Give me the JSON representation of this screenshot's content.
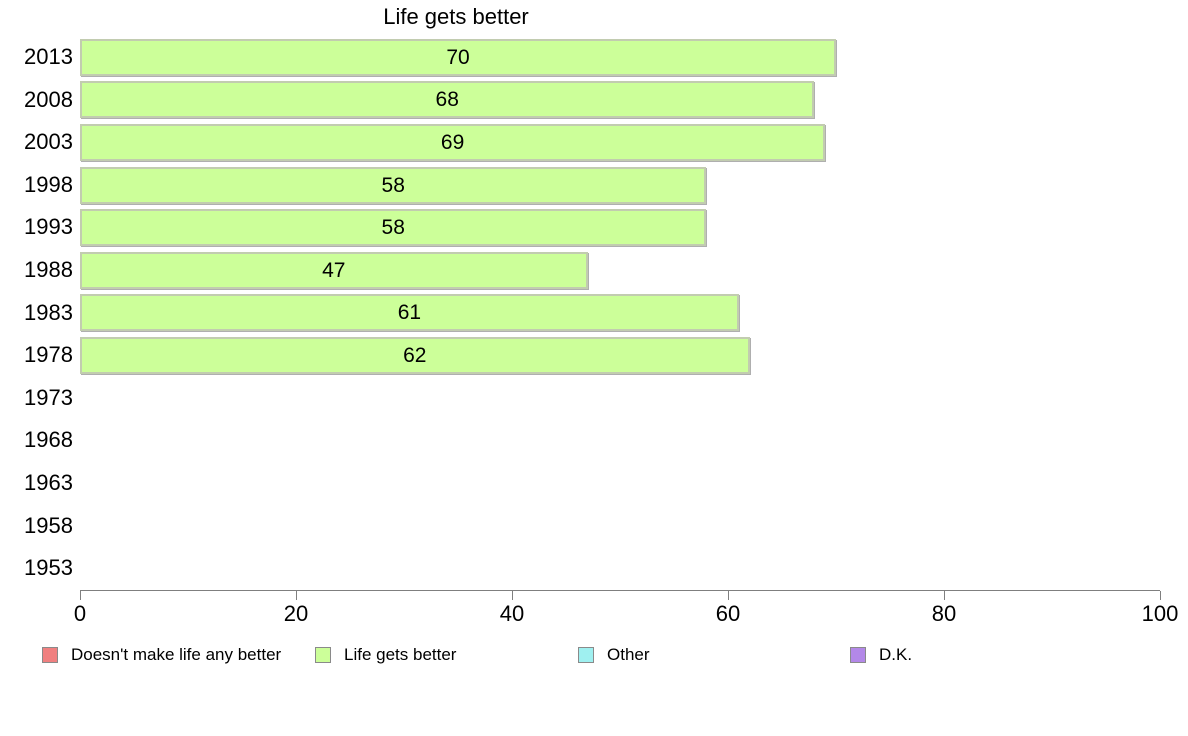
{
  "chart_data": {
    "type": "bar",
    "orientation": "horizontal",
    "title": "Life gets better",
    "categories": [
      "2013",
      "2008",
      "2003",
      "1998",
      "1993",
      "1988",
      "1983",
      "1978",
      "1973",
      "1968",
      "1963",
      "1958",
      "1953"
    ],
    "values": [
      70,
      68,
      69,
      58,
      58,
      47,
      61,
      62,
      null,
      null,
      null,
      null,
      null
    ],
    "series_name": "Life gets better",
    "bar_color": "#ccff99",
    "xlim": [
      0,
      100
    ],
    "x_ticks": [
      0,
      20,
      40,
      60,
      80,
      100
    ],
    "grid": false,
    "value_labels_inside_bars": true,
    "legend_position": "bottom",
    "legend": [
      {
        "label": "Doesn't make life any better",
        "color": "#f08080"
      },
      {
        "label": "Life gets better",
        "color": "#ccff99"
      },
      {
        "label": "Other",
        "color": "#9ff0f0"
      },
      {
        "label": "D.K.",
        "color": "#b388e8"
      }
    ]
  }
}
